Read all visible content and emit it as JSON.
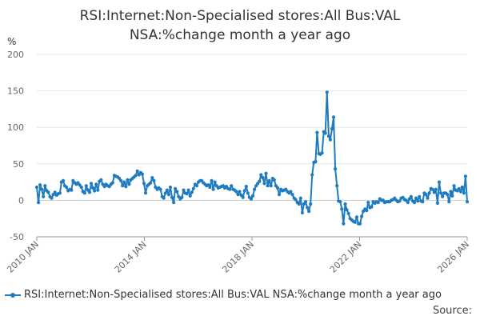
{
  "chart_data": {
    "type": "line",
    "title_line1": "RSI:Internet:Non-Specialised stores:All Bus:VAL",
    "title_line2": "NSA:%change month a year ago",
    "ylabel": "%",
    "ylim": [
      -50,
      200
    ],
    "yticks": [
      "-50",
      "0",
      "50",
      "100",
      "150",
      "200"
    ],
    "ytick_values": [
      -50,
      0,
      50,
      100,
      150,
      200
    ],
    "xlim": [
      2010.0,
      2026.0
    ],
    "xticks": [
      "2010 JAN",
      "2014 JAN",
      "2018 JAN",
      "2022 JAN",
      "2026 JAN"
    ],
    "xtick_values": [
      2010.0,
      2014.0,
      2018.0,
      2022.0,
      2026.0
    ],
    "grid": true,
    "legend_position": "bottom",
    "series": [
      {
        "name": "RSI:Internet:Non-Specialised stores:All Bus:VAL NSA:%change month a year ago",
        "color": "#1f7bbf",
        "values": [
          18,
          -3,
          21,
          15,
          5,
          20,
          13,
          11,
          5,
          3,
          8,
          11,
          7,
          9,
          10,
          25,
          27,
          20,
          18,
          13,
          15,
          14,
          27,
          24,
          22,
          24,
          21,
          18,
          12,
          10,
          20,
          14,
          11,
          23,
          17,
          13,
          22,
          14,
          26,
          28,
          22,
          19,
          22,
          20,
          19,
          22,
          24,
          34,
          33,
          32,
          30,
          27,
          20,
          25,
          19,
          28,
          22,
          28,
          30,
          32,
          34,
          40,
          35,
          38,
          36,
          23,
          10,
          20,
          22,
          24,
          31,
          27,
          18,
          15,
          17,
          15,
          5,
          3,
          10,
          14,
          8,
          18,
          4,
          -3,
          16,
          12,
          5,
          2,
          4,
          14,
          10,
          9,
          14,
          6,
          11,
          16,
          22,
          20,
          25,
          27,
          27,
          24,
          22,
          20,
          21,
          18,
          27,
          15,
          25,
          20,
          17,
          18,
          19,
          20,
          17,
          19,
          16,
          15,
          20,
          15,
          14,
          12,
          8,
          12,
          7,
          4,
          13,
          19,
          10,
          4,
          2,
          6,
          15,
          20,
          23,
          26,
          35,
          31,
          23,
          37,
          20,
          27,
          20,
          30,
          28,
          20,
          17,
          8,
          15,
          13,
          14,
          15,
          12,
          10,
          12,
          8,
          3,
          1,
          -3,
          -5,
          3,
          -17,
          -5,
          -2,
          -10,
          -15,
          -5,
          35,
          52,
          53,
          93,
          64,
          63,
          65,
          94,
          92,
          148,
          88,
          83,
          98,
          114,
          43,
          20,
          -1,
          -2,
          -12,
          -32,
          -5,
          -13,
          -18,
          -25,
          -27,
          -29,
          -30,
          -23,
          -32,
          -32,
          -22,
          -15,
          -12,
          -14,
          -3,
          -10,
          -9,
          -2,
          -4,
          -2,
          -3,
          2,
          0,
          0,
          -3,
          -2,
          -2,
          -2,
          0,
          1,
          3,
          0,
          -2,
          -1,
          3,
          4,
          1,
          0,
          -3,
          2,
          5,
          -1,
          -3,
          3,
          -1,
          5,
          -1,
          -2,
          10,
          8,
          3,
          10,
          16,
          15,
          11,
          15,
          -4,
          25,
          10,
          5,
          10,
          10,
          8,
          -2,
          12,
          6,
          20,
          14,
          13,
          16,
          12,
          18,
          10,
          33,
          -2
        ]
      }
    ]
  },
  "source_label": "Source:"
}
